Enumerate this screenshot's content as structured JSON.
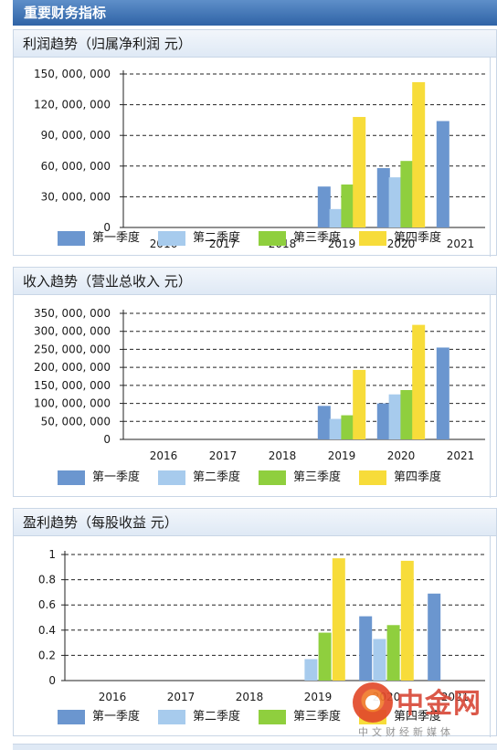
{
  "header": {
    "title": "重要财务指标"
  },
  "colors": {
    "q1": "#6b96cf",
    "q2": "#a7cbed",
    "q3": "#8fcf3e",
    "q4": "#f7dc3a",
    "header": "#2f63a6"
  },
  "legend": [
    "第一季度",
    "第二季度",
    "第三季度",
    "第四季度"
  ],
  "watermark": {
    "brand": "中金网",
    "sub": "中文财经新媒体"
  },
  "chart_data": [
    {
      "type": "bar",
      "title": "利润趋势（归属净利润 元）",
      "categories": [
        "2016",
        "2017",
        "2018",
        "2019",
        "2020",
        "2021"
      ],
      "yticks": [
        "0",
        "30, 000, 000",
        "60, 000, 000",
        "90, 000, 000",
        "120, 000, 000",
        "150, 000, 000"
      ],
      "ylim": [
        0,
        150000000
      ],
      "grid": true,
      "legend_position": "bottom",
      "series": [
        {
          "name": "第一季度",
          "values": [
            null,
            null,
            null,
            40000000,
            58000000,
            104000000
          ]
        },
        {
          "name": "第二季度",
          "values": [
            null,
            null,
            null,
            18000000,
            49000000,
            null
          ]
        },
        {
          "name": "第三季度",
          "values": [
            null,
            null,
            null,
            42000000,
            65000000,
            null
          ]
        },
        {
          "name": "第四季度",
          "values": [
            null,
            null,
            null,
            108000000,
            142000000,
            null
          ]
        }
      ]
    },
    {
      "type": "bar",
      "title": "收入趋势（营业总收入 元）",
      "categories": [
        "2016",
        "2017",
        "2018",
        "2019",
        "2020",
        "2021"
      ],
      "yticks": [
        "0",
        "50, 000, 000",
        "100, 000, 000",
        "150, 000, 000",
        "200, 000, 000",
        "250, 000, 000",
        "300, 000, 000",
        "350, 000, 000"
      ],
      "ylim": [
        0,
        350000000
      ],
      "grid": true,
      "legend_position": "bottom",
      "series": [
        {
          "name": "第一季度",
          "values": [
            null,
            null,
            null,
            93000000,
            100000000,
            255000000
          ]
        },
        {
          "name": "第二季度",
          "values": [
            null,
            null,
            null,
            57000000,
            125000000,
            null
          ]
        },
        {
          "name": "第三季度",
          "values": [
            null,
            null,
            null,
            67000000,
            137000000,
            null
          ]
        },
        {
          "name": "第四季度",
          "values": [
            null,
            null,
            null,
            193000000,
            318000000,
            null
          ]
        }
      ]
    },
    {
      "type": "bar",
      "title": "盈利趋势（每股收益 元）",
      "categories": [
        "2016",
        "2017",
        "2018",
        "2019",
        "2020",
        "2021"
      ],
      "yticks": [
        "0",
        "0.2",
        "0.4",
        "0.6",
        "0.8",
        "1"
      ],
      "ylim": [
        0,
        1
      ],
      "grid": true,
      "legend_position": "bottom",
      "series": [
        {
          "name": "第一季度",
          "values": [
            null,
            null,
            null,
            null,
            0.51,
            0.69
          ]
        },
        {
          "name": "第二季度",
          "values": [
            null,
            null,
            null,
            0.17,
            0.33,
            null
          ]
        },
        {
          "name": "第三季度",
          "values": [
            null,
            null,
            null,
            0.38,
            0.44,
            null
          ]
        },
        {
          "name": "第四季度",
          "values": [
            null,
            null,
            null,
            0.97,
            0.95,
            null
          ]
        }
      ]
    }
  ]
}
